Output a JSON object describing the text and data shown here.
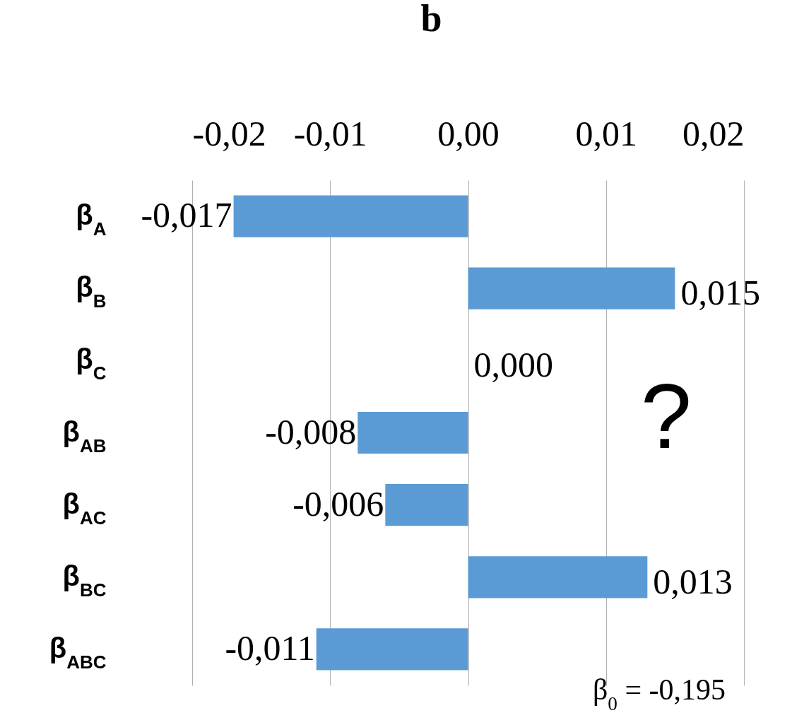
{
  "chart_data": {
    "type": "bar",
    "orientation": "horizontal",
    "title": "b",
    "categories": [
      "β$_{A}$",
      "β$_{B}$",
      "β$_{C}$",
      "β$_{AB}$",
      "β$_{AC}$",
      "β$_{BC}$",
      "β$_{ABC}$"
    ],
    "values": [
      -0.017,
      0.015,
      0,
      -0.008,
      -0.006,
      0.013,
      -0.011
    ],
    "value_labels": [
      "-0,017",
      "0,015",
      "0,000",
      "-0,008",
      "-0,006",
      "0,013",
      "-0,011"
    ],
    "color": "#5b9bd5",
    "xlim": [
      -0.02,
      0.02
    ],
    "xticks": [
      {
        "value": -0.02,
        "label": "-0,02"
      },
      {
        "value": -0.01,
        "label": "-0,01"
      },
      {
        "value": 0,
        "label": "0,00"
      },
      {
        "value": 0.01,
        "label": "0,01"
      },
      {
        "value": 0.02,
        "label": "0,02"
      }
    ],
    "grid": "x",
    "annotations": [
      "?",
      "β$_{0}$ = -0,195"
    ]
  }
}
